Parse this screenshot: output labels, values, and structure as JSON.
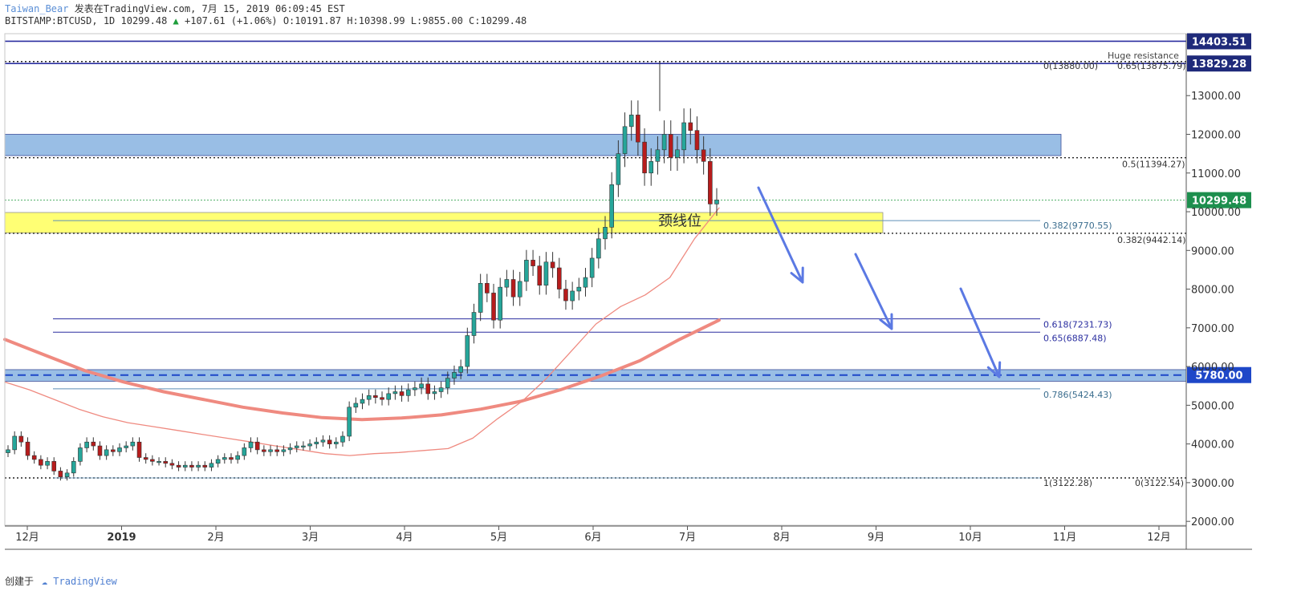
{
  "header": {
    "author": "Taiwan_Bear",
    "published": "发表在TradingView.com, 7月 15, 2019 06:09:45 EST",
    "symbol": "BITSTAMP:BTCUSD, 1D 10299.48",
    "change": "+107.61 (+1.06%)",
    "ohlc": "O:10191.87 H:10398.99 L:9855.00 C:10299.48"
  },
  "footer": {
    "created_by": "创建于",
    "brand": "TradingView"
  },
  "colors": {
    "up": "#26a69a",
    "down": "#b71c1c",
    "ma_thin": "#ef8a80",
    "ma_thick": "#ef8a80",
    "zone_blue": "#8fb8e3",
    "zone_yellow": "#ffff66",
    "fib_line": "#2b2fa0",
    "arrow": "#5b79e3",
    "last_price_bg": "#1d8f4e",
    "level_bg": "#1f2a7a",
    "dash_level_bg": "#1e47c8"
  },
  "chart_data": {
    "type": "candlestick",
    "x_ticks": [
      "12月",
      "2019",
      "2月",
      "3月",
      "4月",
      "5月",
      "6月",
      "7月",
      "8月",
      "9月",
      "10月",
      "11月",
      "12月"
    ],
    "y_ticks": [
      "2000.00",
      "3000.00",
      "4000.00",
      "5000.00",
      "6000.00",
      "7000.00",
      "8000.00",
      "9000.00",
      "10000.00",
      "11000.00",
      "12000.00",
      "13000.00"
    ],
    "ylim": [
      1900,
      14600
    ],
    "price_tags": [
      {
        "value": 14403.51,
        "label": "14403.51",
        "style": "level"
      },
      {
        "value": 13829.28,
        "label": "13829.28",
        "style": "level"
      },
      {
        "value": 10299.48,
        "label": "10299.48",
        "style": "last"
      },
      {
        "value": 5780.0,
        "label": "5780.00",
        "style": "dash"
      }
    ],
    "annotations": {
      "huge_resistance": "Huge resistance",
      "neckline": "颈线位"
    },
    "fib_labels": [
      {
        "text": "0(13880.00)",
        "value": 13880.0
      },
      {
        "text": "0.65(13875.79)",
        "value": 13875.79
      },
      {
        "text": "0.5(11394.27)",
        "value": 11394.27
      },
      {
        "text": "0.382(9770.55)",
        "value": 9770.55
      },
      {
        "text": "0.382(9442.14)",
        "value": 9442.14
      },
      {
        "text": "0.618(7231.73)",
        "value": 7231.73
      },
      {
        "text": "0.65(6887.48)",
        "value": 6887.48
      },
      {
        "text": "0.786(5424.43)",
        "value": 5424.43
      },
      {
        "text": "1(3122.28)",
        "value": 3122.28
      },
      {
        "text": "0(3122.54)",
        "value": 3122.54
      }
    ],
    "zones": [
      {
        "name": "resistance-zone",
        "from": 11450,
        "to": 12000
      },
      {
        "name": "neckline-zone",
        "from": 9450,
        "to": 9980
      },
      {
        "name": "support-zone",
        "from": 5620,
        "to": 5920
      }
    ],
    "closes": [
      3850,
      4200,
      4050,
      3700,
      3600,
      3450,
      3550,
      3300,
      3150,
      3250,
      3550,
      3900,
      4050,
      3950,
      3700,
      3850,
      3800,
      3900,
      3950,
      4050,
      3650,
      3600,
      3550,
      3550,
      3500,
      3450,
      3400,
      3450,
      3400,
      3450,
      3400,
      3500,
      3600,
      3650,
      3600,
      3700,
      3900,
      4050,
      3850,
      3800,
      3850,
      3800,
      3850,
      3900,
      3950,
      3950,
      4000,
      4050,
      4100,
      4000,
      4050,
      4200,
      4950,
      5050,
      5150,
      5250,
      5200,
      5150,
      5300,
      5350,
      5250,
      5400,
      5450,
      5550,
      5300,
      5350,
      5450,
      5700,
      5850,
      6000,
      6800,
      7400,
      8150,
      7900,
      7200,
      8050,
      8250,
      7800,
      8200,
      8750,
      8600,
      8100,
      8700,
      8550,
      8000,
      7700,
      7950,
      8050,
      8300,
      8800,
      9300,
      9600,
      10700,
      11500,
      12200,
      12500,
      11800,
      11000,
      11300,
      11600,
      12000,
      11400,
      11600,
      12300,
      12100,
      11600,
      11300,
      10200,
      10300
    ],
    "ma_thin": [
      5600,
      5400,
      5150,
      4900,
      4700,
      4550,
      4450,
      4350,
      4250,
      4150,
      4050,
      3950,
      3850,
      3750,
      3700,
      3750,
      3780,
      3830,
      3880,
      4150,
      4650,
      5100,
      5700,
      6400,
      7100,
      7550,
      7850,
      8300,
      9300,
      10100
    ],
    "ma_thick": [
      6700,
      6300,
      5900,
      5600,
      5350,
      5150,
      4950,
      4800,
      4680,
      4630,
      4670,
      4750,
      4900,
      5100,
      5400,
      5750,
      6150,
      6700,
      7200
    ]
  }
}
